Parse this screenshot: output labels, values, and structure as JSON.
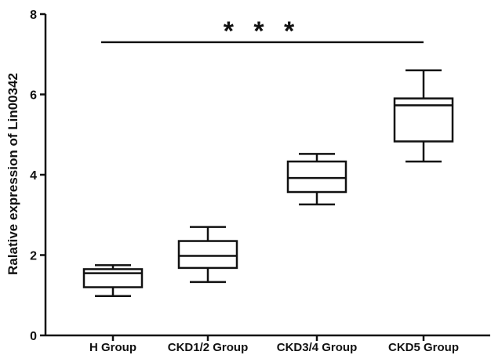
{
  "chart_data": {
    "type": "box",
    "title": "",
    "xlabel": "",
    "ylabel": "Ralative expression of Lin00342",
    "ylim": [
      0,
      8
    ],
    "yticks": [
      "0",
      "2",
      "4",
      "6",
      "8"
    ],
    "ytick_values": [
      0,
      2,
      4,
      6,
      8
    ],
    "grid": false,
    "categories": [
      "H Group",
      "CKD1/2 Group",
      "CKD3/4 Group",
      "CKD5 Group"
    ],
    "boxes": [
      {
        "min": 0.98,
        "q1": 1.2,
        "median": 1.55,
        "q3": 1.65,
        "max": 1.75
      },
      {
        "min": 1.33,
        "q1": 1.68,
        "median": 1.98,
        "q3": 2.35,
        "max": 2.7
      },
      {
        "min": 3.26,
        "q1": 3.57,
        "median": 3.92,
        "q3": 4.33,
        "max": 4.52
      },
      {
        "min": 4.33,
        "q1": 4.83,
        "median": 5.73,
        "q3": 5.9,
        "max": 6.6
      }
    ],
    "annotations": [
      {
        "text": "* * *",
        "from": "H Group",
        "to": "CKD5 Group",
        "y": 7.3
      }
    ]
  }
}
